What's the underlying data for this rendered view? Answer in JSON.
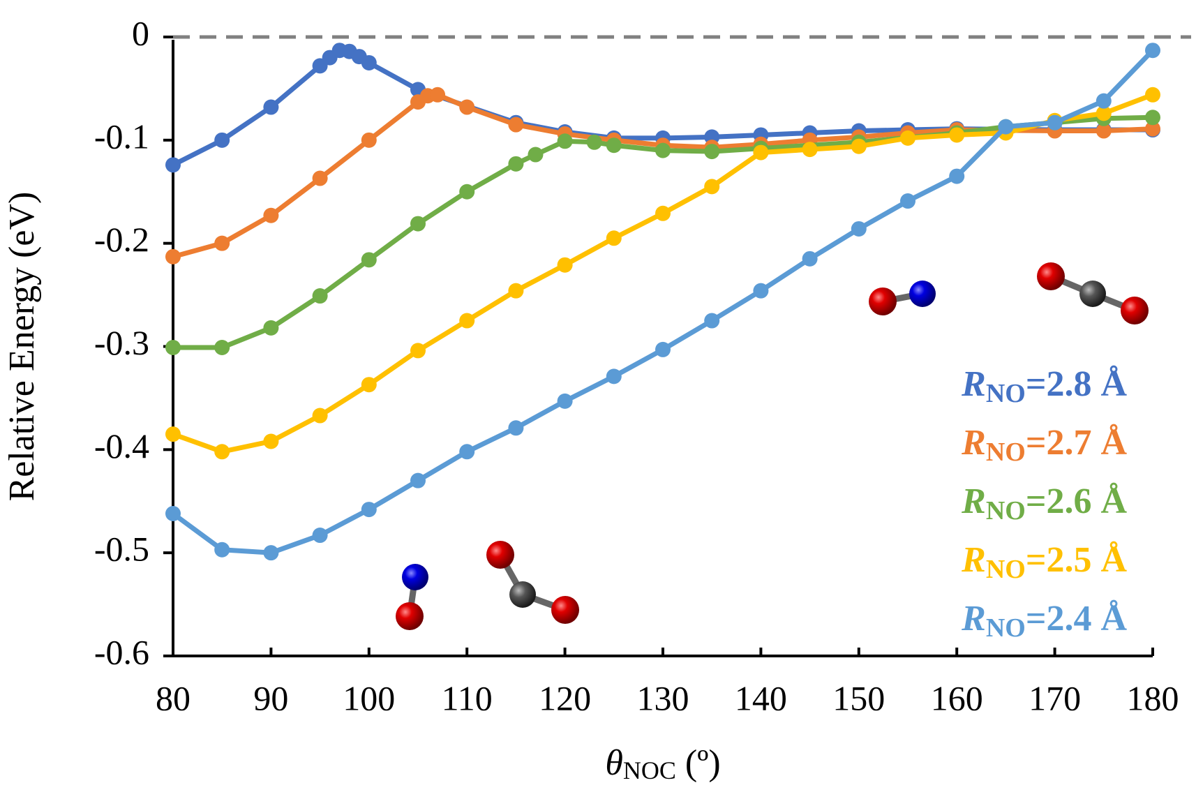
{
  "chart_data": {
    "type": "line",
    "x_label": "θNOC (º)",
    "y_label": "Relative Energy (eV)",
    "xlim": [
      80,
      180
    ],
    "ylim": [
      -0.6,
      0
    ],
    "xticks": [
      80,
      90,
      100,
      110,
      120,
      130,
      140,
      150,
      160,
      170,
      180
    ],
    "yticks": [
      0,
      -0.1,
      -0.2,
      -0.3,
      -0.4,
      -0.5,
      -0.6
    ],
    "reference_line": 0,
    "series": [
      {
        "name": "RNO=2.8 Å",
        "color": "#4472c4",
        "x": [
          80,
          85,
          90,
          95,
          96,
          97,
          98,
          99,
          100,
          105,
          115,
          120,
          125,
          130,
          135,
          140,
          145,
          150,
          155,
          160,
          170,
          175,
          180
        ],
        "values": [
          -0.124,
          -0.1,
          -0.068,
          -0.028,
          -0.02,
          -0.013,
          -0.014,
          -0.019,
          -0.025,
          -0.051,
          -0.083,
          -0.092,
          -0.098,
          -0.098,
          -0.097,
          -0.095,
          -0.093,
          -0.091,
          -0.09,
          -0.089,
          -0.09,
          -0.09,
          -0.09
        ]
      },
      {
        "name": "RNO=2.7 Å",
        "color": "#ed7d31",
        "x": [
          80,
          85,
          90,
          95,
          100,
          105,
          106,
          107,
          110,
          115,
          120,
          125,
          130,
          135,
          140,
          145,
          150,
          155,
          160,
          170,
          175,
          180
        ],
        "values": [
          -0.213,
          -0.2,
          -0.173,
          -0.137,
          -0.1,
          -0.063,
          -0.057,
          -0.056,
          -0.068,
          -0.085,
          -0.094,
          -0.1,
          -0.105,
          -0.107,
          -0.104,
          -0.1,
          -0.097,
          -0.093,
          -0.09,
          -0.091,
          -0.091,
          -0.089
        ]
      },
      {
        "name": "RNO=2.6 Å",
        "color": "#70ad47",
        "x": [
          80,
          85,
          90,
          95,
          100,
          105,
          110,
          115,
          117,
          120,
          123,
          125,
          130,
          135,
          140,
          150,
          160,
          165,
          170,
          175,
          180
        ],
        "values": [
          -0.301,
          -0.301,
          -0.282,
          -0.251,
          -0.216,
          -0.181,
          -0.15,
          -0.123,
          -0.114,
          -0.101,
          -0.102,
          -0.105,
          -0.11,
          -0.111,
          -0.108,
          -0.102,
          -0.093,
          -0.087,
          -0.083,
          -0.079,
          -0.078
        ]
      },
      {
        "name": "RNO=2.5 Å",
        "color": "#ffc000",
        "x": [
          80,
          85,
          90,
          95,
          100,
          105,
          110,
          115,
          120,
          125,
          130,
          135,
          140,
          145,
          150,
          155,
          160,
          165,
          170,
          175,
          180
        ],
        "values": [
          -0.385,
          -0.402,
          -0.392,
          -0.367,
          -0.337,
          -0.304,
          -0.275,
          -0.246,
          -0.221,
          -0.195,
          -0.171,
          -0.145,
          -0.112,
          -0.109,
          -0.106,
          -0.098,
          -0.095,
          -0.093,
          -0.081,
          -0.074,
          -0.056
        ]
      },
      {
        "name": "RNO=2.4 Å",
        "color": "#5b9bd5",
        "x": [
          80,
          85,
          90,
          95,
          100,
          105,
          110,
          115,
          120,
          125,
          130,
          135,
          140,
          145,
          150,
          155,
          160,
          165,
          170,
          175,
          180
        ],
        "values": [
          -0.462,
          -0.497,
          -0.5,
          -0.483,
          -0.458,
          -0.43,
          -0.402,
          -0.379,
          -0.353,
          -0.329,
          -0.303,
          -0.275,
          -0.246,
          -0.215,
          -0.186,
          -0.159,
          -0.135,
          -0.087,
          -0.083,
          -0.062,
          -0.013
        ]
      }
    ]
  }
}
